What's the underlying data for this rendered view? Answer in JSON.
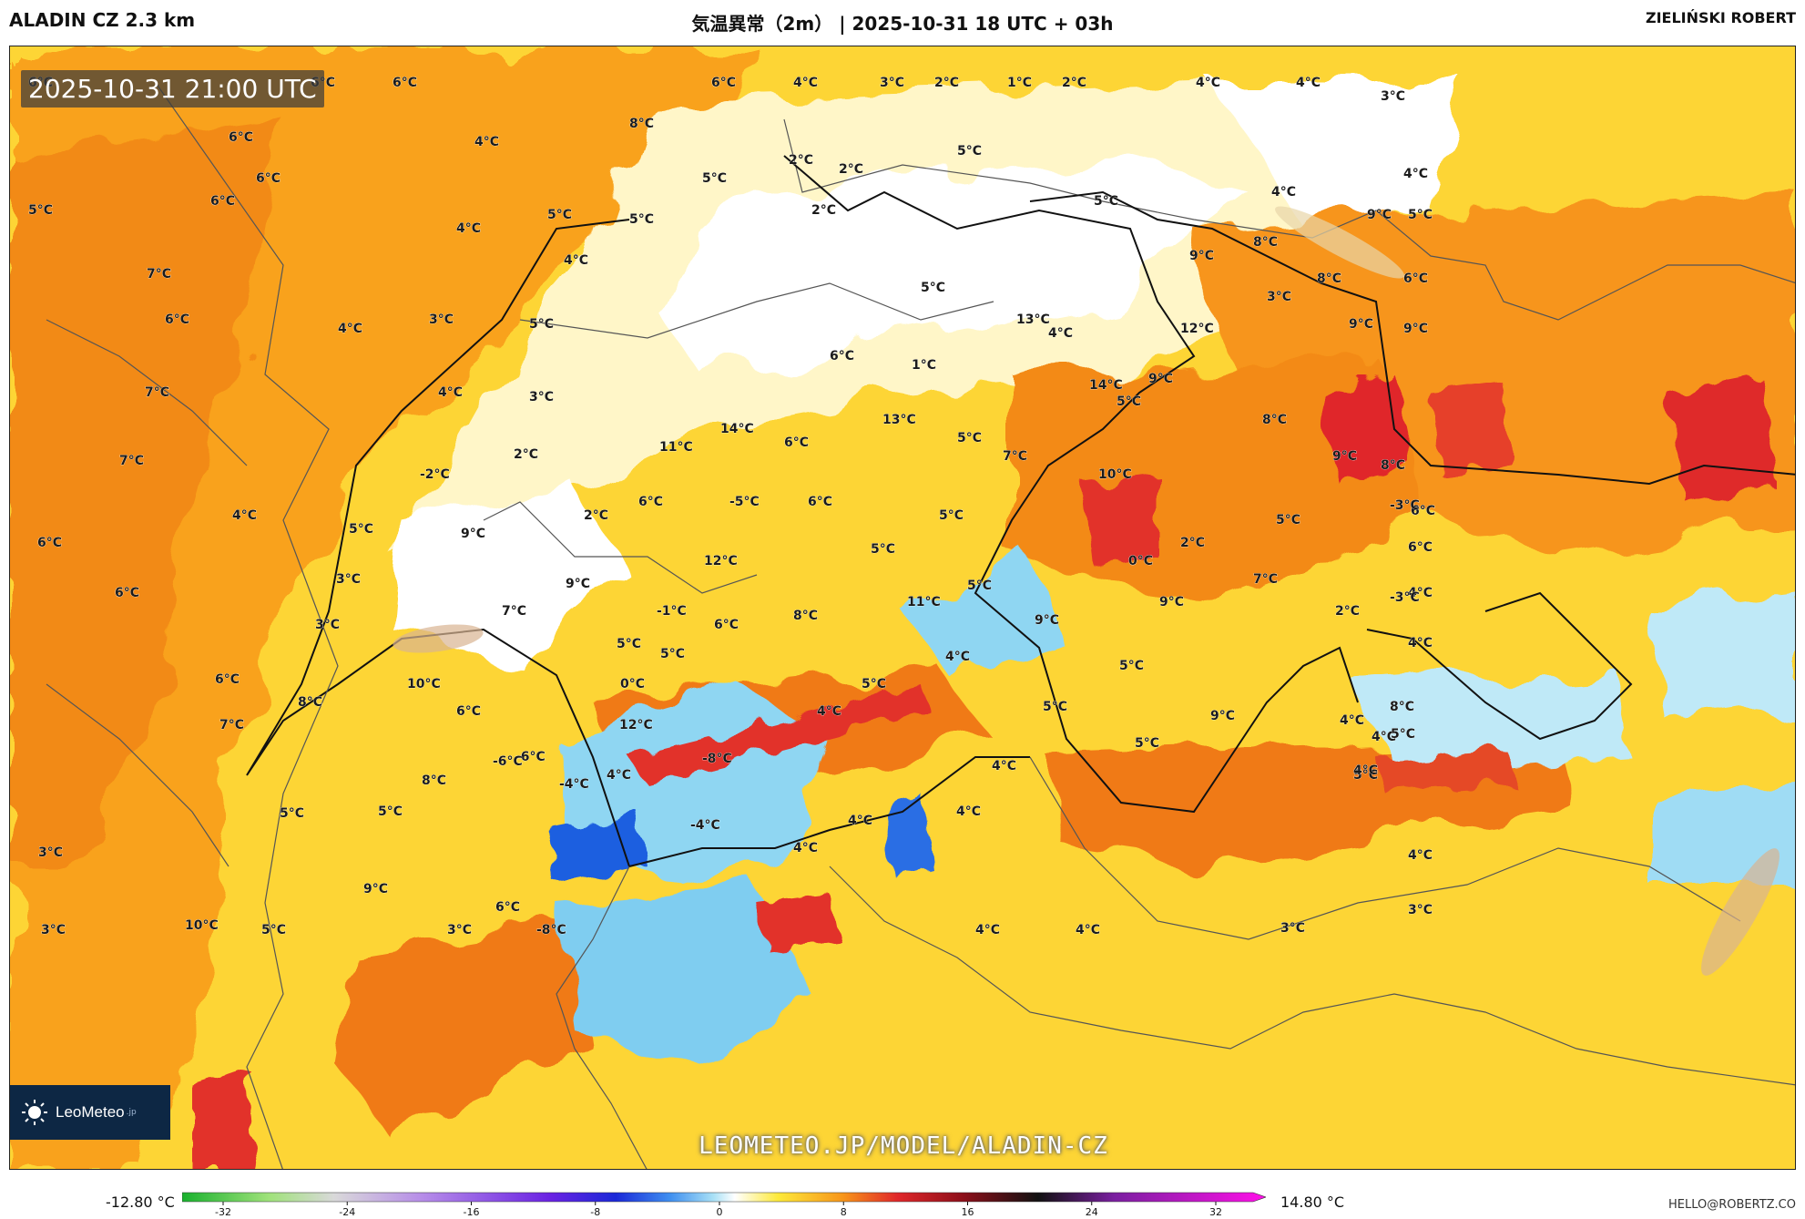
{
  "header": {
    "model": "ALADIN CZ 2.3 km",
    "title": "気温異常（2m） | 2025-10-31 18 UTC + 03h"
  },
  "map": {
    "timestamp": "2025-10-31 21:00 UTC",
    "watermark": "LEOMETEO.JP/MODEL/ALADIN-CZ",
    "logo": {
      "text": "LeoMeteo",
      "suffix": ".jp",
      "icon": "sun-icon"
    },
    "labels": [
      "6°C",
      "6°C",
      "6°C",
      "8°C",
      "6°C",
      "4°C",
      "3°C",
      "2°C",
      "1°C",
      "2°C",
      "4°C",
      "4°C",
      "3°C",
      "6°C",
      "5°C",
      "4°C",
      "6°C",
      "6°C",
      "5°C",
      "2°C",
      "2°C",
      "5°C",
      "4°C",
      "5°C",
      "2°C",
      "5°C",
      "5°C",
      "4°C",
      "4°C",
      "9°C",
      "8°C",
      "5°C",
      "9°C",
      "4°C",
      "7°C",
      "6°C",
      "3°C",
      "5°C",
      "5°C",
      "4°C",
      "8°C",
      "6°C",
      "13°C",
      "12°C",
      "9°C",
      "9°C",
      "3°C",
      "5°C",
      "6°C",
      "4°C",
      "1°C",
      "7°C",
      "4°C",
      "3°C",
      "14°C",
      "9°C",
      "13°C",
      "14°C",
      "11°C",
      "6°C",
      "8°C",
      "2°C",
      "-2°C",
      "5°C",
      "7°C",
      "10°C",
      "9°C",
      "8°C",
      "7°C",
      "6°C",
      "5°C",
      "4°C",
      "6°C",
      "2°C",
      "6°C",
      "-5°C",
      "5°C",
      "6°C",
      "5°C",
      "-3°C",
      "5°C",
      "9°C",
      "12°C",
      "9°C",
      "3°C",
      "7°C",
      "0°C",
      "2°C",
      "7°C",
      "6°C",
      "6°C",
      "4°C",
      "-1°C",
      "5°C",
      "8°C",
      "11°C",
      "9°C",
      "5°C",
      "9°C",
      "-3°C",
      "3°C",
      "5°C",
      "6°C",
      "0°C",
      "5°C",
      "5°C",
      "4°C",
      "2°C",
      "6°C",
      "10°C",
      "8°C",
      "6°C",
      "4°C",
      "5°C",
      "4°C",
      "9°C",
      "4°C",
      "7°C",
      "8°C",
      "12°C",
      "-8°C",
      "4°C",
      "5°C",
      "5°C",
      "4°C",
      "-6°C",
      "-4°C",
      "4°C",
      "4°C",
      "5°C",
      "-4°C",
      "4°C",
      "4°C",
      "5°C",
      "-6°C",
      "8°C",
      "9°C",
      "3°C",
      "6°C",
      "-8°C",
      "4°C",
      "4°C",
      "10°C",
      "5°C",
      "3°C",
      "3°C",
      "3°C",
      "4°C",
      "5°C",
      "4°C",
      "3°C"
    ]
  },
  "legend": {
    "min_label": "-12.80 °C",
    "max_label": "14.80 °C",
    "ticks": [
      "-32",
      "-24",
      "-16",
      "-8",
      "0",
      "8",
      "16",
      "24",
      "32"
    ]
  },
  "footer": {
    "author": "ZIELIŃSKI ROBERT",
    "email": "HELLO@ROBERTZ.CO"
  }
}
